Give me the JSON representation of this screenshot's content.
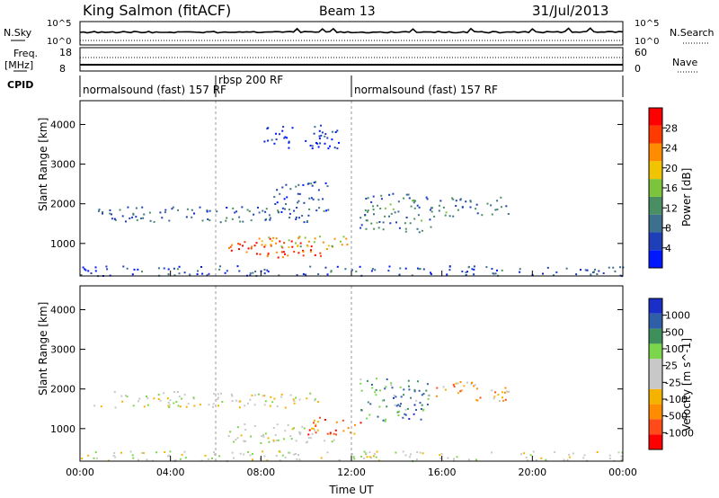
{
  "header": {
    "station": "King Salmon (fitACF)",
    "beam": "Beam 13",
    "date": "31/Jul/2013"
  },
  "summary": {
    "nsky_label": "N.Sky",
    "freq_label_1": "Freq.",
    "freq_label_2": "[MHz]",
    "cpid_label": "CPID",
    "nsearch_label": "N.Search",
    "nave_label": "Nave",
    "nsky_ticks": [
      "10^5",
      "10^0"
    ],
    "nsky_right_ticks": [
      "10^5",
      "10^0"
    ],
    "freq_ticks": [
      "18",
      "8"
    ],
    "nave_ticks": [
      "60",
      "0"
    ]
  },
  "cpid_segments": [
    {
      "label": "normalsound (fast) 157 RF",
      "start_hour": 0,
      "end_hour": 6
    },
    {
      "label": "rbsp 200 RF",
      "start_hour": 6,
      "end_hour": 12
    },
    {
      "label": "normalsound (fast) 157 RF",
      "start_hour": 12,
      "end_hour": 24
    }
  ],
  "colors": {
    "power_scale": [
      "#0018ff",
      "#1e3fb8",
      "#3d6f8f",
      "#4a8f63",
      "#7cc43c",
      "#f0c400",
      "#ff8c00",
      "#ff3a00",
      "#ff0000"
    ],
    "velocity_scale": [
      "#ff0000",
      "#ff4a1a",
      "#ff8c00",
      "#f5b300",
      "#c8c8c8",
      "#c8c8c8",
      "#7cd64c",
      "#3f8f5c",
      "#2e5fa8",
      "#1a2fc8"
    ]
  },
  "chart_data": [
    {
      "type": "heatmap",
      "panel": "power",
      "xlabel": "",
      "ylabel": "Slant Range [km]",
      "xlim_hours": [
        0,
        24
      ],
      "ylim": [
        180,
        4600
      ],
      "y_ticks": [
        "1000",
        "2000",
        "3000",
        "4000"
      ],
      "colorbar_label": "Power [dB]",
      "colorbar_ticks": [
        "4",
        "8",
        "12",
        "16",
        "20",
        "24",
        "28"
      ],
      "scatter_regions": [
        {
          "x_hours": [
            0.5,
            10.5
          ],
          "y_km": [
            1550,
            1950
          ],
          "level": 0.25
        },
        {
          "x_hours": [
            6.5,
            11.2
          ],
          "y_km": [
            650,
            1150
          ],
          "level": 0.85
        },
        {
          "x_hours": [
            7.5,
            11.8
          ],
          "y_km": [
            850,
            1200
          ],
          "level": 0.6
        },
        {
          "x_hours": [
            12.3,
            15.5
          ],
          "y_km": [
            1300,
            2300
          ],
          "level": 0.3
        },
        {
          "x_hours": [
            15.5,
            19.0
          ],
          "y_km": [
            1700,
            2200
          ],
          "level": 0.3
        },
        {
          "x_hours": [
            8.5,
            11.0
          ],
          "y_km": [
            1800,
            2600
          ],
          "level": 0.2
        },
        {
          "x_hours": [
            0.0,
            24.0
          ],
          "y_km": [
            200,
            450
          ],
          "level": 0.2
        },
        {
          "x_hours": [
            8.0,
            11.5
          ],
          "y_km": [
            3400,
            4000
          ],
          "level": 0.1
        }
      ]
    },
    {
      "type": "heatmap",
      "panel": "velocity",
      "xlabel": "Time UT",
      "ylabel": "Slant Range [km]",
      "xlim_hours": [
        0,
        24
      ],
      "ylim": [
        180,
        4600
      ],
      "x_ticks": [
        "00:00",
        "04:00",
        "08:00",
        "12:00",
        "16:00",
        "20:00",
        "00:00"
      ],
      "y_ticks": [
        "1000",
        "2000",
        "3000",
        "4000"
      ],
      "colorbar_label": "Velocity [m s^-1]",
      "colorbar_ticks": [
        "1000",
        "500",
        "100",
        "25",
        "-25",
        "-100",
        "-500",
        "-1000"
      ],
      "scatter_regions": [
        {
          "x_hours": [
            0.5,
            10.5
          ],
          "y_km": [
            1550,
            1950
          ],
          "level": 0.5
        },
        {
          "x_hours": [
            6.5,
            11.2
          ],
          "y_km": [
            650,
            1150
          ],
          "level": 0.5
        },
        {
          "x_hours": [
            10.0,
            12.5
          ],
          "y_km": [
            850,
            1300
          ],
          "level": 0.2
        },
        {
          "x_hours": [
            12.3,
            15.5
          ],
          "y_km": [
            1200,
            2300
          ],
          "level": 0.75
        },
        {
          "x_hours": [
            15.5,
            19.0
          ],
          "y_km": [
            1700,
            2200
          ],
          "level": 0.3
        },
        {
          "x_hours": [
            0.0,
            24.0
          ],
          "y_km": [
            200,
            450
          ],
          "level": 0.5
        }
      ]
    }
  ]
}
